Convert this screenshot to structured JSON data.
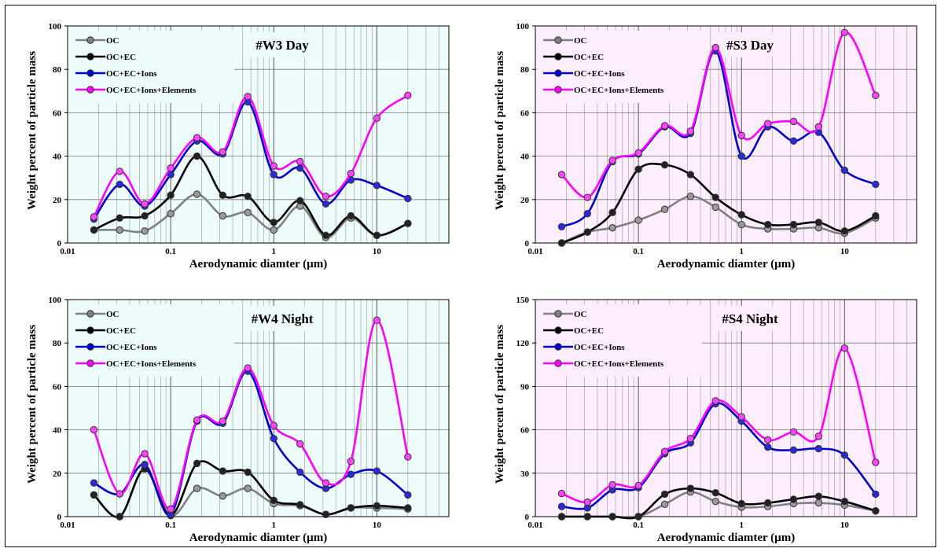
{
  "chart_data": [
    {
      "type": "line",
      "title": "#W3 Day",
      "xlabel": "Aerodynamic  diamter (µm)",
      "ylabel": "Weight  percent  of  particle  mass",
      "xscale": "log",
      "xlim": [
        0.01,
        50
      ],
      "ylim": [
        0,
        100
      ],
      "yticks": [
        0,
        20,
        40,
        60,
        80,
        100
      ],
      "xticks": [
        0.01,
        0.1,
        1,
        10
      ],
      "xtick_labels": [
        "0.01",
        "0.1",
        "1",
        "10"
      ],
      "background": "#eefcfc",
      "legend_position": "top-left",
      "grid": true,
      "x": [
        0.018,
        0.032,
        0.056,
        0.1,
        0.18,
        0.32,
        0.56,
        1.0,
        1.8,
        3.2,
        5.6,
        10,
        20
      ],
      "series": [
        {
          "name": "OC",
          "color": "#808080",
          "values": [
            6,
            6,
            5.5,
            13.5,
            22.5,
            12.5,
            14,
            6,
            17,
            2.5,
            11.5,
            3.5,
            9
          ]
        },
        {
          "name": "OC+EC",
          "color": "#000000",
          "values": [
            6,
            11.5,
            12.5,
            22,
            40,
            22,
            21.5,
            9.5,
            19.5,
            3.5,
            12.5,
            3.5,
            9
          ]
        },
        {
          "name": "OC+EC+Ions",
          "color": "#0000cc",
          "values": [
            11,
            27,
            17,
            31.5,
            47,
            41,
            65,
            31.5,
            34.5,
            18,
            29,
            26.5,
            20.5
          ]
        },
        {
          "name": "OC+EC+Ions+Elements",
          "color": "#ff00ff",
          "values": [
            12,
            33,
            18,
            34.5,
            48.5,
            42,
            67.5,
            35.5,
            37.5,
            21.5,
            32,
            57.5,
            68
          ]
        }
      ]
    },
    {
      "type": "line",
      "title": "#S3 Day",
      "xlabel": "Aerodynamic  diamter (µm)",
      "ylabel": "Weight  percent  of  particle  mass",
      "xscale": "log",
      "xlim": [
        0.01,
        50
      ],
      "ylim": [
        0,
        100
      ],
      "yticks": [
        0,
        20,
        40,
        60,
        80,
        100
      ],
      "xticks": [
        0.01,
        0.1,
        1,
        10
      ],
      "xtick_labels": [
        "0.01",
        "0.1",
        "1",
        "10"
      ],
      "background": "#fdeefd",
      "legend_position": "top-left",
      "grid": true,
      "x": [
        0.018,
        0.032,
        0.056,
        0.1,
        0.18,
        0.32,
        0.56,
        1.0,
        1.8,
        3.2,
        5.6,
        10,
        20
      ],
      "series": [
        {
          "name": "OC",
          "color": "#808080",
          "values": [
            0,
            5,
            7,
            10.5,
            15.5,
            21.5,
            16.5,
            8.5,
            6.5,
            6.5,
            7,
            4.5,
            11.5
          ]
        },
        {
          "name": "OC+EC",
          "color": "#000000",
          "values": [
            0,
            5,
            14,
            34,
            36,
            31.5,
            21,
            13,
            8.5,
            8.5,
            9.5,
            5.5,
            12.5
          ]
        },
        {
          "name": "OC+EC+Ions",
          "color": "#0000cc",
          "values": [
            7.5,
            13.5,
            37.5,
            41,
            53.5,
            50.5,
            88.5,
            40,
            53.5,
            47,
            51,
            33.5,
            27
          ]
        },
        {
          "name": "OC+EC+Ions+Elements",
          "color": "#ff00ff",
          "values": [
            31.5,
            21,
            38,
            41.5,
            54,
            51.5,
            90,
            49.5,
            55,
            56,
            53.5,
            97,
            68
          ]
        }
      ]
    },
    {
      "type": "line",
      "title": "#W4 Night",
      "xlabel": "Aerodynamic  diamter (µm)",
      "ylabel": "Weight  percent  of  particle  mass",
      "xscale": "log",
      "xlim": [
        0.01,
        50
      ],
      "ylim": [
        0,
        100
      ],
      "yticks": [
        0,
        20,
        40,
        60,
        80,
        100
      ],
      "xticks": [
        0.01,
        0.1,
        1,
        10
      ],
      "xtick_labels": [
        "0.01",
        "0.1",
        "1",
        "10"
      ],
      "background": "#eefcfc",
      "legend_position": "top-left",
      "grid": true,
      "x": [
        0.018,
        0.032,
        0.056,
        0.1,
        0.18,
        0.32,
        0.56,
        1.0,
        1.8,
        3.2,
        5.6,
        10,
        20
      ],
      "series": [
        {
          "name": "OC",
          "color": "#808080",
          "values": [
            10,
            0,
            22,
            0.5,
            13,
            9.5,
            13,
            6,
            5,
            1,
            4,
            4,
            3.5
          ]
        },
        {
          "name": "OC+EC",
          "color": "#000000",
          "values": [
            10,
            0,
            22,
            0.5,
            24.5,
            21,
            20.5,
            7.5,
            5.5,
            1,
            4,
            5,
            4
          ]
        },
        {
          "name": "OC+EC+Ions",
          "color": "#0000cc",
          "values": [
            15.5,
            10.5,
            24,
            1,
            44,
            43,
            67,
            36,
            20.5,
            13,
            19.5,
            21,
            10
          ]
        },
        {
          "name": "OC+EC+Ions+Elements",
          "color": "#ff00ff",
          "values": [
            40,
            10.5,
            29,
            3.5,
            44.5,
            44,
            68.5,
            42,
            33.5,
            15.5,
            25.5,
            90.5,
            27.5
          ]
        }
      ]
    },
    {
      "type": "line",
      "title": "#S4 Night",
      "xlabel": "Aerodynamic  diamter (µm)",
      "ylabel": "Weight  percent  of  particle  mass",
      "xscale": "log",
      "xlim": [
        0.01,
        50
      ],
      "ylim": [
        0,
        150
      ],
      "yticks": [
        0,
        30,
        60,
        90,
        120,
        150
      ],
      "xticks": [
        0.01,
        0.1,
        1,
        10
      ],
      "xtick_labels": [
        "0.01",
        "0.1",
        "1",
        "10"
      ],
      "background": "#fdeefd",
      "legend_position": "top-left",
      "grid": true,
      "x": [
        0.018,
        0.032,
        0.056,
        0.1,
        0.18,
        0.32,
        0.56,
        1.0,
        1.8,
        3.2,
        5.6,
        10,
        20
      ],
      "series": [
        {
          "name": "OC",
          "color": "#808080",
          "values": [
            0,
            0,
            0,
            0,
            8.5,
            17,
            10.5,
            6.5,
            7,
            9,
            9.5,
            8,
            4
          ]
        },
        {
          "name": "OC+EC",
          "color": "#000000",
          "values": [
            0,
            0,
            0,
            0,
            15.5,
            19.5,
            16.5,
            9,
            9.5,
            12,
            14,
            10.5,
            4
          ]
        },
        {
          "name": "OC+EC+Ions",
          "color": "#0000cc",
          "values": [
            7,
            6,
            18.5,
            20,
            43.5,
            51,
            78,
            66,
            48,
            46,
            47,
            42.5,
            15.5
          ]
        },
        {
          "name": "OC+EC+Ions+Elements",
          "color": "#ff00ff",
          "values": [
            16,
            10,
            22,
            21.5,
            45,
            54,
            80,
            69,
            53,
            58.5,
            55.5,
            116.5,
            37.5
          ]
        }
      ]
    }
  ]
}
